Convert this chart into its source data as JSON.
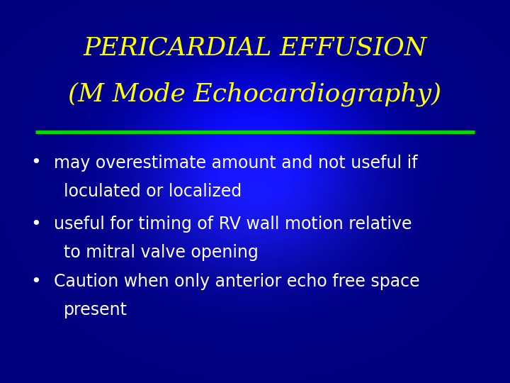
{
  "title_line1": "PERICARDIAL EFFUSION",
  "title_line2": "(M Mode Echocardiography)",
  "title_color": "#FFFF00",
  "bullet_color": "#FFFFFF",
  "separator_color": "#00DD00",
  "bullets_line1": [
    "may overestimate amount and not useful if",
    "useful for timing of RV wall motion relative",
    "Caution when only anterior echo free space"
  ],
  "bullets_line2": [
    "loculated or localized",
    "to mitral valve opening",
    "present"
  ],
  "title_fontsize": 26,
  "bullet_fontsize": 17,
  "fig_width": 7.2,
  "fig_height": 5.4,
  "dpi": 100
}
